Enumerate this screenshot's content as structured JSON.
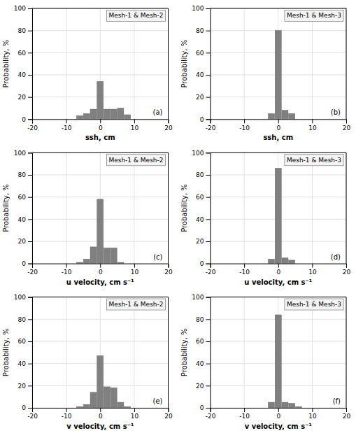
{
  "chart_data": [
    {
      "type": "bar",
      "x_label": "ssh, cm",
      "y_label": "Probability, %",
      "x": [
        -12,
        -10,
        -8,
        -6,
        -4,
        -2,
        0,
        2,
        4,
        6,
        8
      ],
      "values": [
        0,
        0,
        0,
        3,
        5,
        9,
        34,
        9,
        9,
        10,
        4
      ],
      "color": "#808080",
      "xlim": [
        -20,
        20
      ],
      "ylim": [
        0,
        100
      ],
      "xticks": [
        -20,
        -10,
        0,
        10,
        20
      ],
      "yticks": [
        0,
        20,
        40,
        60,
        80,
        100
      ],
      "grid": true,
      "annotations": [
        "Mesh-1 & Mesh-2",
        "(a)"
      ]
    },
    {
      "type": "bar",
      "x_label": "ssh, cm",
      "y_label": "Probability, %",
      "x": [
        -4,
        -2,
        0,
        2,
        4
      ],
      "values": [
        0,
        5,
        80,
        8,
        5
      ],
      "color": "#808080",
      "xlim": [
        -20,
        20
      ],
      "ylim": [
        0,
        100
      ],
      "xticks": [
        -20,
        -10,
        0,
        10,
        20
      ],
      "yticks": [
        0,
        20,
        40,
        60,
        80,
        100
      ],
      "grid": true,
      "annotations": [
        "Mesh-1 & Mesh-3",
        "(b)"
      ]
    },
    {
      "type": "bar",
      "x_label": "u velocity, cm s⁻¹",
      "y_label": "Probability, %",
      "x": [
        -10,
        -8,
        -6,
        -4,
        -2,
        0,
        2,
        4,
        6
      ],
      "values": [
        0,
        0,
        1,
        4,
        15,
        58,
        14,
        14,
        1
      ],
      "color": "#808080",
      "xlim": [
        -20,
        20
      ],
      "ylim": [
        0,
        100
      ],
      "xticks": [
        -20,
        -10,
        0,
        10,
        20
      ],
      "yticks": [
        0,
        20,
        40,
        60,
        80,
        100
      ],
      "grid": true,
      "annotations": [
        "Mesh-1 & Mesh-2",
        "(c)"
      ]
    },
    {
      "type": "bar",
      "x_label": "u velocity, cm s⁻¹",
      "y_label": "Probability, %",
      "x": [
        -4,
        -2,
        0,
        2,
        4
      ],
      "values": [
        0,
        4,
        86,
        5,
        3
      ],
      "color": "#808080",
      "xlim": [
        -20,
        20
      ],
      "ylim": [
        0,
        100
      ],
      "xticks": [
        -20,
        -10,
        0,
        10,
        20
      ],
      "yticks": [
        0,
        20,
        40,
        60,
        80,
        100
      ],
      "grid": true,
      "annotations": [
        "Mesh-1 & Mesh-3",
        "(d)"
      ]
    },
    {
      "type": "bar",
      "x_label": "v velocity, cm s⁻¹",
      "y_label": "Probability, %",
      "x": [
        -10,
        -8,
        -6,
        -4,
        -2,
        0,
        2,
        4,
        6,
        8
      ],
      "values": [
        0,
        0,
        1,
        3,
        14,
        47,
        19,
        18,
        5,
        1
      ],
      "color": "#808080",
      "xlim": [
        -20,
        20
      ],
      "ylim": [
        0,
        100
      ],
      "xticks": [
        -20,
        -10,
        0,
        10,
        20
      ],
      "yticks": [
        0,
        20,
        40,
        60,
        80,
        100
      ],
      "grid": true,
      "annotations": [
        "Mesh-1 & Mesh-2",
        "(e)"
      ]
    },
    {
      "type": "bar",
      "x_label": "v velocity, cm s⁻¹",
      "y_label": "Probability, %",
      "x": [
        -4,
        -2,
        0,
        2,
        4,
        6
      ],
      "values": [
        0,
        5,
        84,
        5,
        4,
        1
      ],
      "color": "#808080",
      "xlim": [
        -20,
        20
      ],
      "ylim": [
        0,
        100
      ],
      "xticks": [
        -20,
        -10,
        0,
        10,
        20
      ],
      "yticks": [
        0,
        20,
        40,
        60,
        80,
        100
      ],
      "grid": true,
      "annotations": [
        "Mesh-1 & Mesh-3",
        "(f)"
      ]
    }
  ]
}
